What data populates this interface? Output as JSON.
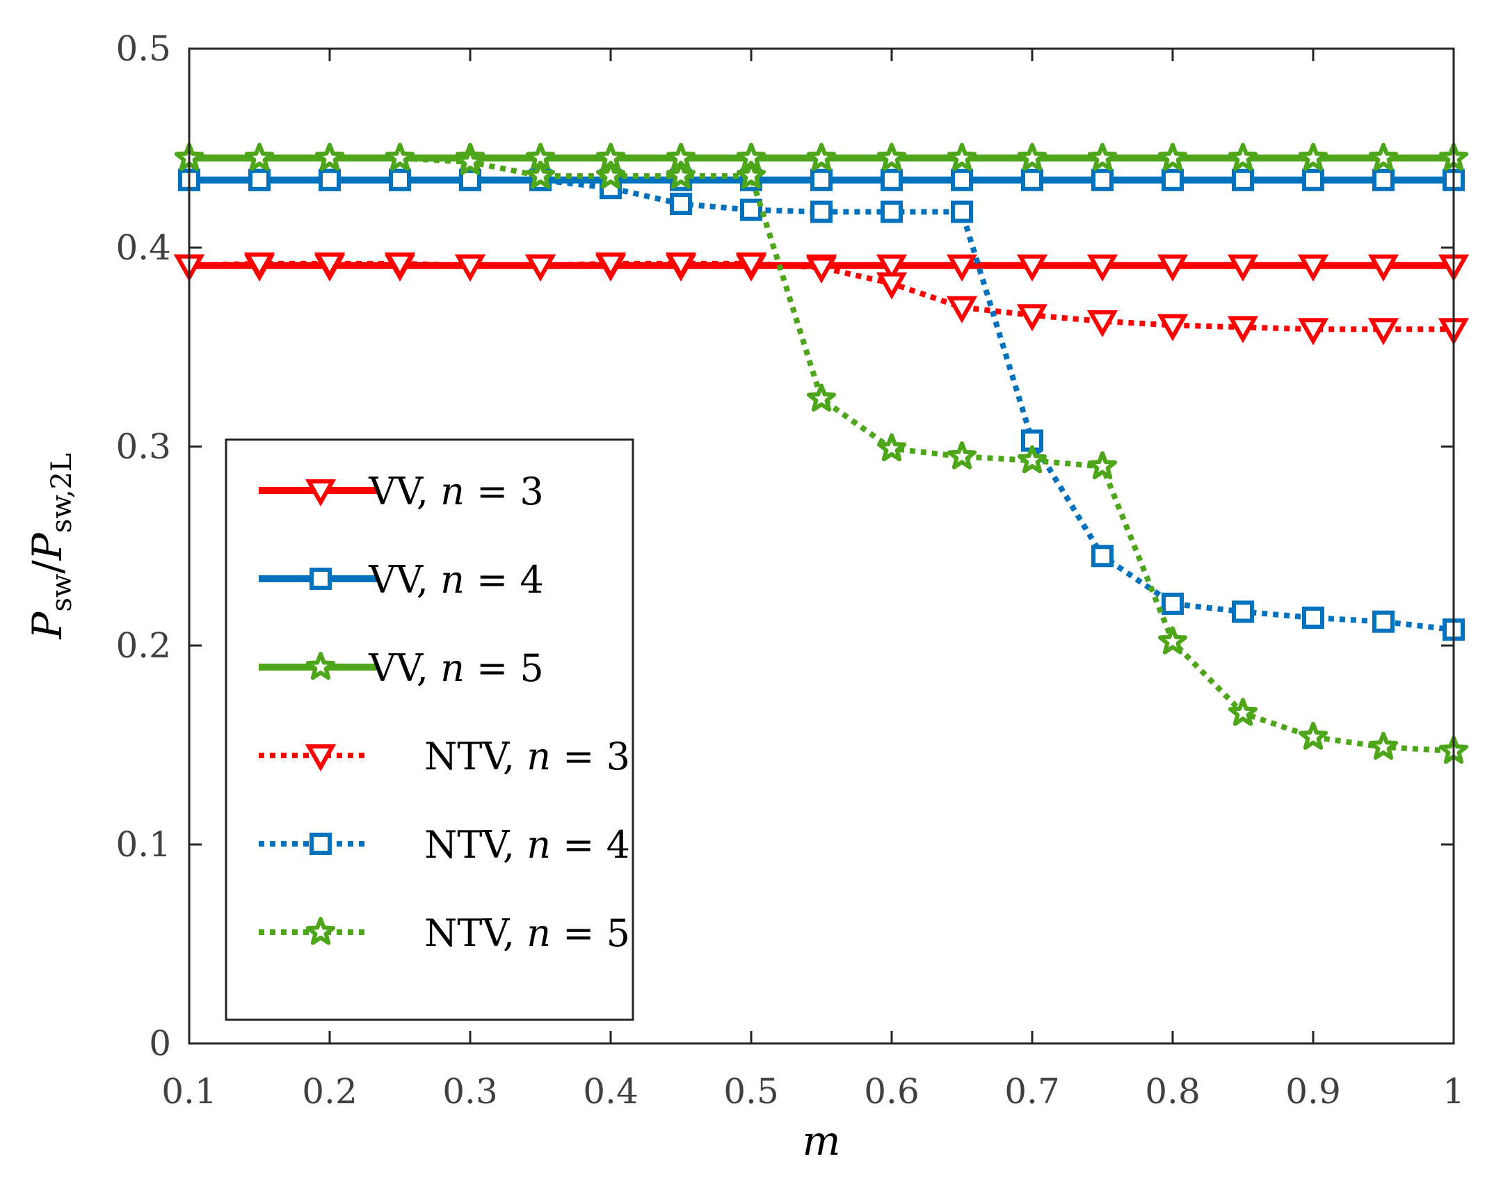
{
  "chart_data": {
    "type": "line",
    "xlabel": "m",
    "ylabel": {
      "main": "P",
      "sub1": "sw",
      "slash": "/",
      "main2": "P",
      "sub2": "sw,2L"
    },
    "xlim": [
      0.1,
      1
    ],
    "ylim": [
      0,
      0.5
    ],
    "xticks": [
      0.1,
      0.2,
      0.3,
      0.4,
      0.5,
      0.6,
      0.7,
      0.8,
      0.9,
      1
    ],
    "xtick_labels": [
      "0.1",
      "0.2",
      "0.3",
      "0.4",
      "0.5",
      "0.6",
      "0.7",
      "0.8",
      "0.9",
      "1"
    ],
    "yticks": [
      0,
      0.1,
      0.2,
      0.3,
      0.4,
      0.5
    ],
    "ytick_labels": [
      "0",
      "0.1",
      "0.2",
      "0.3",
      "0.4",
      "0.5"
    ],
    "grid": false,
    "legend_position": "bottom-left",
    "x": [
      0.1,
      0.15,
      0.2,
      0.25,
      0.3,
      0.35,
      0.4,
      0.45,
      0.5,
      0.55,
      0.6,
      0.65,
      0.7,
      0.75,
      0.8,
      0.85,
      0.9,
      0.95,
      1.0
    ],
    "series": [
      {
        "name": "VV, n = 3",
        "label_prefix": "VV, ",
        "color": "#ff0000",
        "style": "solid",
        "marker": "triangle-down",
        "values": [
          0.391,
          0.391,
          0.391,
          0.391,
          0.391,
          0.391,
          0.391,
          0.391,
          0.391,
          0.391,
          0.391,
          0.391,
          0.391,
          0.391,
          0.391,
          0.391,
          0.391,
          0.391,
          0.391
        ]
      },
      {
        "name": "VV, n = 4",
        "label_prefix": "VV, ",
        "color": "#0072bd",
        "style": "solid",
        "marker": "square",
        "values": [
          0.434,
          0.434,
          0.434,
          0.434,
          0.434,
          0.434,
          0.434,
          0.434,
          0.434,
          0.434,
          0.434,
          0.434,
          0.434,
          0.434,
          0.434,
          0.434,
          0.434,
          0.434,
          0.434
        ]
      },
      {
        "name": "VV, n = 5",
        "label_prefix": "VV, ",
        "color": "#4da619",
        "style": "solid",
        "marker": "star",
        "values": [
          0.445,
          0.445,
          0.445,
          0.445,
          0.445,
          0.445,
          0.445,
          0.445,
          0.445,
          0.445,
          0.445,
          0.445,
          0.445,
          0.445,
          0.445,
          0.445,
          0.445,
          0.445,
          0.445
        ]
      },
      {
        "name": "NTV, n = 3",
        "label_prefix": "NTV, ",
        "color": "#ff0000",
        "style": "dotted",
        "marker": "triangle-down",
        "values": [
          0.391,
          0.392,
          0.392,
          0.392,
          0.391,
          0.391,
          0.392,
          0.392,
          0.392,
          0.39,
          0.382,
          0.37,
          0.366,
          0.363,
          0.361,
          0.36,
          0.359,
          0.359,
          0.359
        ]
      },
      {
        "name": "NTV, n = 4",
        "label_prefix": "NTV, ",
        "color": "#0072bd",
        "style": "dotted",
        "marker": "square",
        "values": [
          0.434,
          0.434,
          0.434,
          0.434,
          0.434,
          0.434,
          0.43,
          0.422,
          0.419,
          0.418,
          0.418,
          0.418,
          0.303,
          0.245,
          0.221,
          0.217,
          0.214,
          0.212,
          0.208
        ]
      },
      {
        "name": "NTV, n = 5",
        "label_prefix": "NTV, ",
        "color": "#4da619",
        "style": "dotted",
        "marker": "star",
        "values": [
          0.445,
          0.445,
          0.445,
          0.445,
          0.443,
          0.436,
          0.436,
          0.436,
          0.436,
          0.324,
          0.299,
          0.295,
          0.293,
          0.29,
          0.202,
          0.166,
          0.154,
          0.149,
          0.147
        ]
      }
    ],
    "legend_n_symbol": "n",
    "legend_values": [
      "= 3",
      "= 4",
      "= 5",
      "= 3",
      "= 4",
      "= 5"
    ]
  }
}
